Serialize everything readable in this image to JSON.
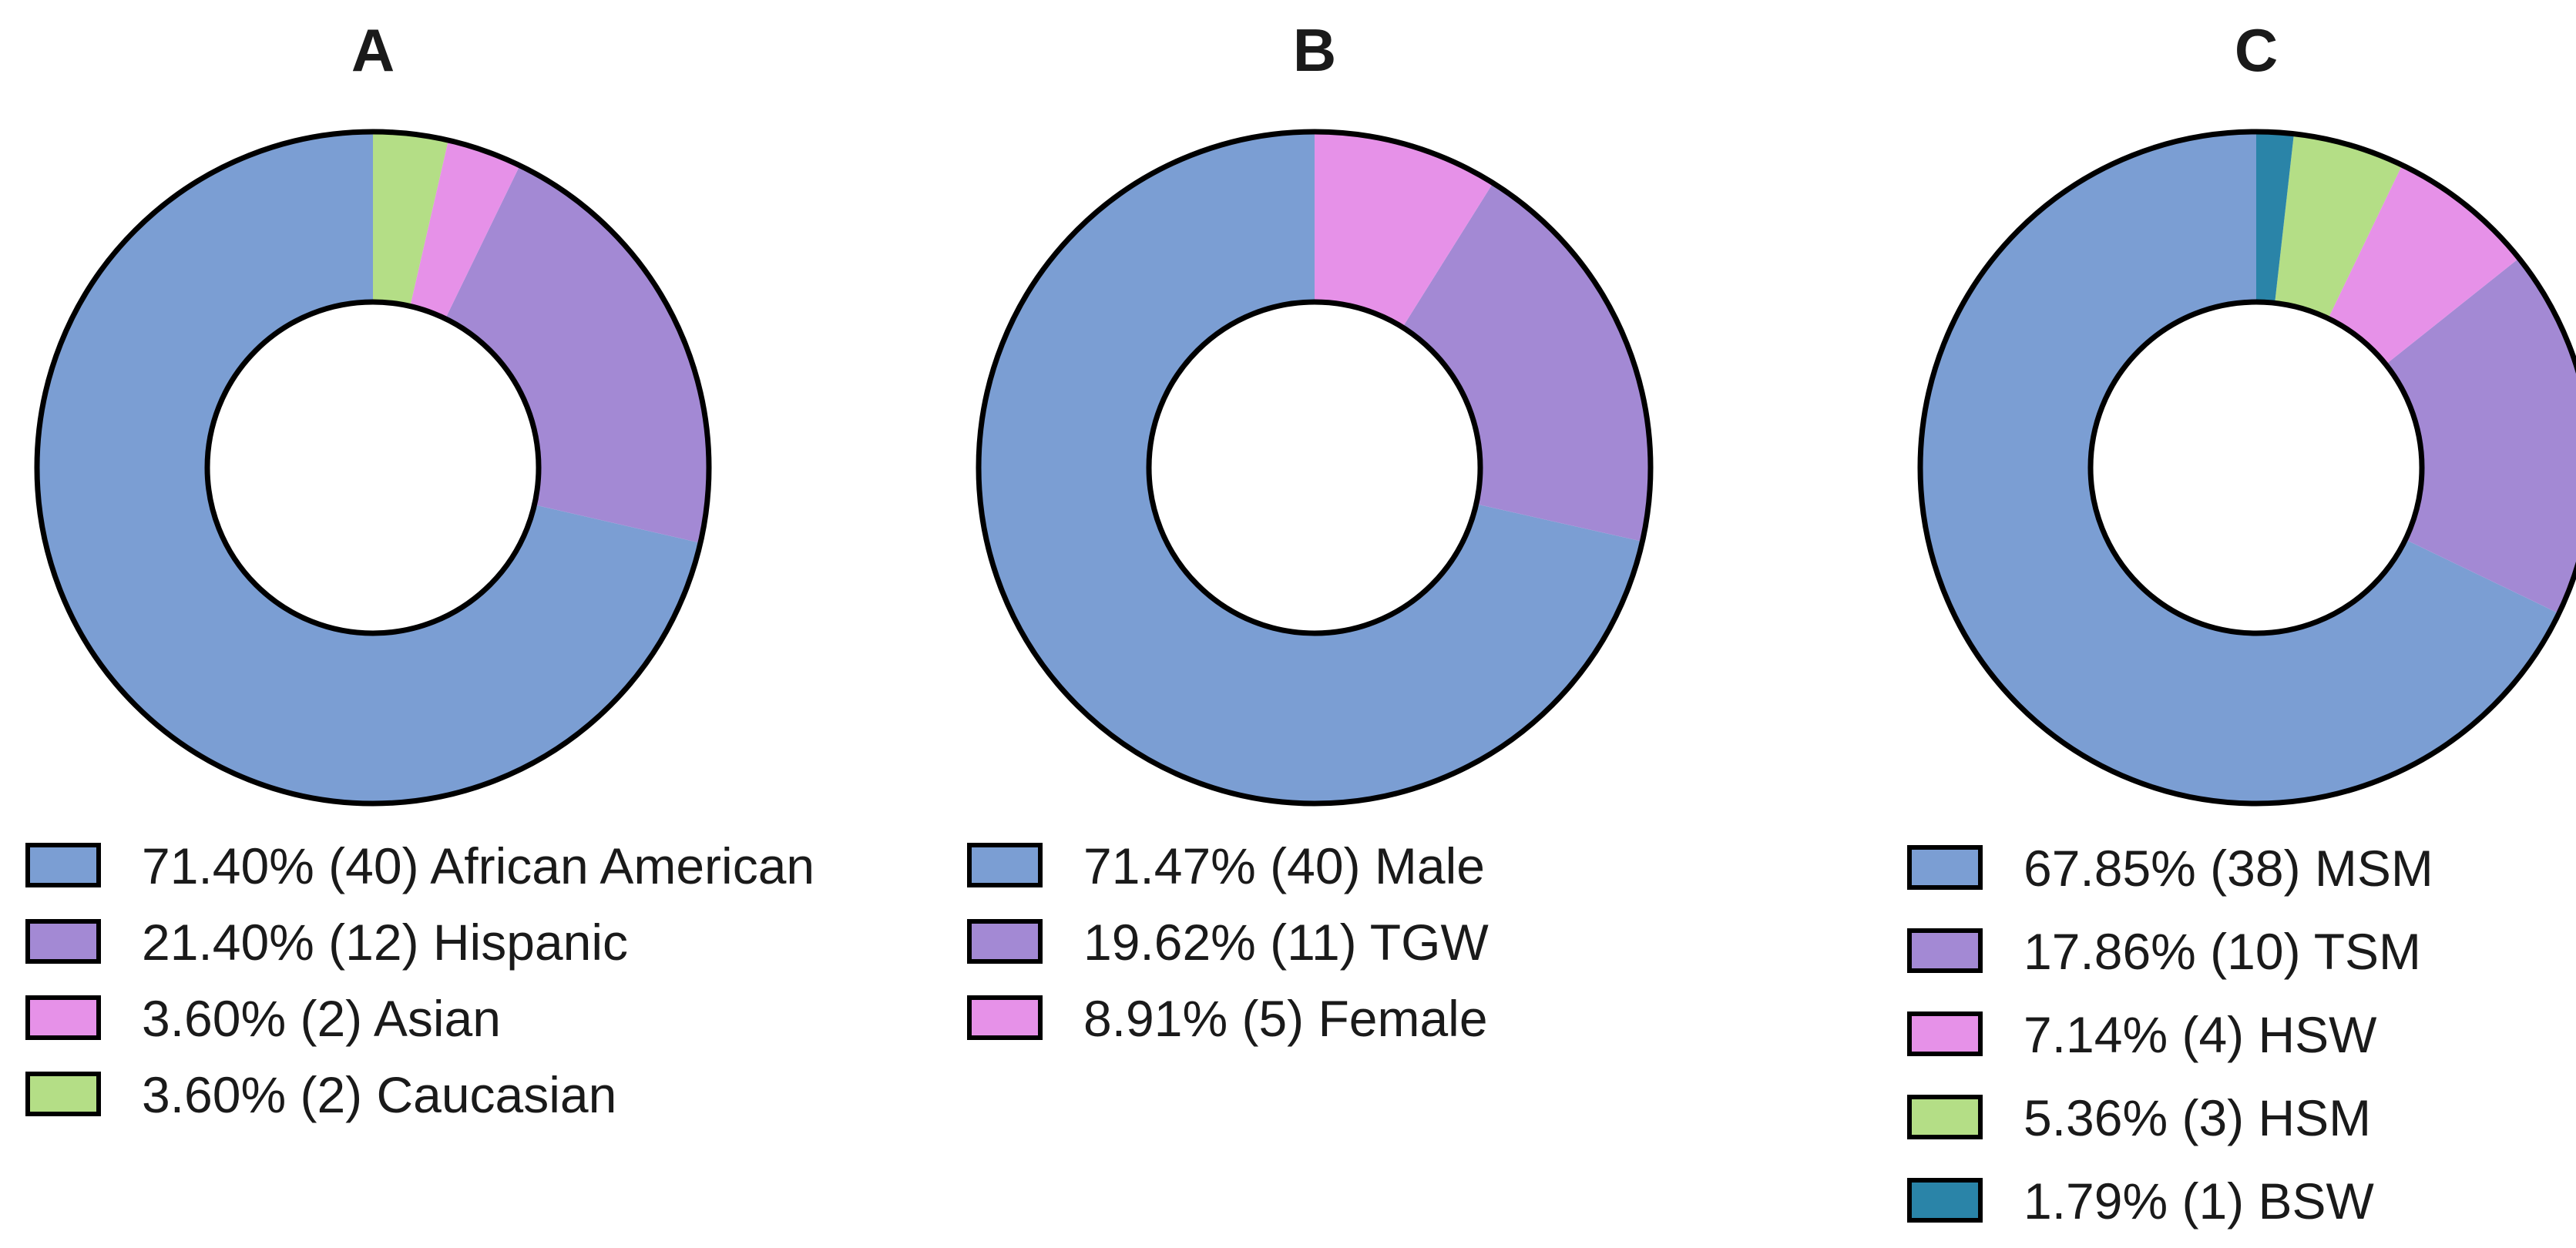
{
  "chart_data": [
    {
      "type": "pie",
      "title": "A",
      "slices": [
        {
          "value": 71.4,
          "count": 40,
          "label": "African American",
          "color": "#7b9ed3",
          "legend": "71.40% (40) African American"
        },
        {
          "value": 21.4,
          "count": 12,
          "label": "Hispanic",
          "color": "#a389d4",
          "legend": "21.40% (12) Hispanic"
        },
        {
          "value": 3.6,
          "count": 2,
          "label": "Asian",
          "color": "#e691e8",
          "legend": "3.60% (2) Asian"
        },
        {
          "value": 3.6,
          "count": 2,
          "label": "Caucasian",
          "color": "#b4de86",
          "legend": "3.60% (2) Caucasian"
        }
      ]
    },
    {
      "type": "pie",
      "title": "B",
      "slices": [
        {
          "value": 71.47,
          "count": 40,
          "label": "Male",
          "color": "#7b9ed3",
          "legend": "71.47% (40) Male"
        },
        {
          "value": 19.62,
          "count": 11,
          "label": "TGW",
          "color": "#a389d4",
          "legend": "19.62% (11) TGW"
        },
        {
          "value": 8.91,
          "count": 5,
          "label": "Female",
          "color": "#e691e8",
          "legend": "8.91% (5) Female"
        }
      ]
    },
    {
      "type": "pie",
      "title": "C",
      "slices": [
        {
          "value": 67.85,
          "count": 38,
          "label": "MSM",
          "color": "#7b9ed3",
          "legend": "67.85% (38) MSM"
        },
        {
          "value": 17.86,
          "count": 10,
          "label": "TSM",
          "color": "#a389d4",
          "legend": "17.86% (10) TSM"
        },
        {
          "value": 7.14,
          "count": 4,
          "label": "HSW",
          "color": "#e691e8",
          "legend": "7.14% (4) HSW"
        },
        {
          "value": 5.36,
          "count": 3,
          "label": "HSM",
          "color": "#b4de86",
          "legend": "5.36% (3) HSM"
        },
        {
          "value": 1.79,
          "count": 1,
          "label": "BSW",
          "color": "#2a84a8",
          "legend": "1.79% (1) BSW"
        }
      ]
    }
  ]
}
